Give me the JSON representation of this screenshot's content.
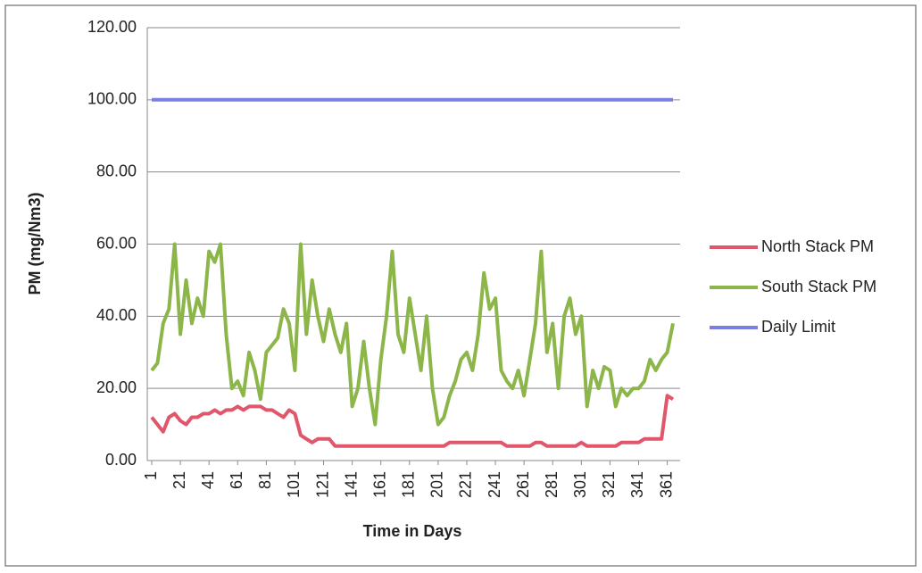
{
  "chart_data": {
    "type": "line",
    "y_label": "PM (mg/Nm3)",
    "x_label": "Time in Days",
    "x": [
      1,
      5,
      9,
      13,
      17,
      21,
      25,
      29,
      33,
      37,
      41,
      45,
      49,
      53,
      57,
      61,
      65,
      69,
      73,
      77,
      81,
      85,
      89,
      93,
      97,
      101,
      105,
      109,
      113,
      117,
      121,
      125,
      129,
      133,
      137,
      141,
      145,
      149,
      153,
      157,
      161,
      165,
      169,
      173,
      177,
      181,
      185,
      189,
      193,
      197,
      201,
      205,
      209,
      213,
      217,
      221,
      225,
      229,
      233,
      237,
      241,
      245,
      249,
      253,
      257,
      261,
      265,
      269,
      273,
      277,
      281,
      285,
      289,
      293,
      297,
      301,
      305,
      309,
      313,
      317,
      321,
      325,
      329,
      333,
      337,
      341,
      345,
      349,
      353,
      357,
      361,
      365
    ],
    "xlim": [
      1,
      365
    ],
    "xticks": [
      1,
      21,
      41,
      61,
      81,
      101,
      121,
      141,
      161,
      181,
      201,
      221,
      241,
      261,
      281,
      301,
      321,
      341,
      361
    ],
    "ylim": [
      0,
      120
    ],
    "yticks": [
      {
        "value": 0,
        "label": "0.00"
      },
      {
        "value": 20,
        "label": "20.00"
      },
      {
        "value": 40,
        "label": "40.00"
      },
      {
        "value": 60,
        "label": "60.00"
      },
      {
        "value": 80,
        "label": "80.00"
      },
      {
        "value": 100,
        "label": "100.00"
      },
      {
        "value": 120,
        "label": "120.00"
      }
    ],
    "grid": true,
    "legend": "right",
    "series": [
      {
        "name": "North Stack PM",
        "color": "#e0566b",
        "values": [
          12,
          10,
          8,
          12,
          13,
          11,
          10,
          12,
          12,
          13,
          13,
          14,
          13,
          14,
          14,
          15,
          14,
          15,
          15,
          15,
          14,
          14,
          13,
          12,
          14,
          13,
          7,
          6,
          5,
          6,
          6,
          6,
          4,
          4,
          4,
          4,
          4,
          4,
          4,
          4,
          4,
          4,
          4,
          4,
          4,
          4,
          4,
          4,
          4,
          4,
          4,
          4,
          5,
          5,
          5,
          5,
          5,
          5,
          5,
          5,
          5,
          5,
          4,
          4,
          4,
          4,
          4,
          5,
          5,
          4,
          4,
          4,
          4,
          4,
          4,
          5,
          4,
          4,
          4,
          4,
          4,
          4,
          5,
          5,
          5,
          5,
          6,
          6,
          6,
          6,
          18,
          17
        ]
      },
      {
        "name": "South Stack PM",
        "color": "#8db64a",
        "values": [
          25,
          27,
          38,
          42,
          60,
          35,
          50,
          38,
          45,
          40,
          58,
          55,
          60,
          35,
          20,
          22,
          18,
          30,
          25,
          17,
          30,
          32,
          34,
          42,
          38,
          25,
          60,
          35,
          50,
          40,
          33,
          42,
          35,
          30,
          38,
          15,
          20,
          33,
          20,
          10,
          28,
          40,
          58,
          35,
          30,
          45,
          35,
          25,
          40,
          20,
          10,
          12,
          18,
          22,
          28,
          30,
          25,
          35,
          52,
          42,
          45,
          25,
          22,
          20,
          25,
          18,
          28,
          38,
          58,
          30,
          38,
          20,
          40,
          45,
          35,
          40,
          15,
          25,
          20,
          26,
          25,
          15,
          20,
          18,
          20,
          20,
          22,
          28,
          25,
          28,
          30,
          38
        ]
      },
      {
        "name": "Daily Limit",
        "color": "#7b7fe0",
        "values": [
          100,
          100,
          100,
          100,
          100,
          100,
          100,
          100,
          100,
          100,
          100,
          100,
          100,
          100,
          100,
          100,
          100,
          100,
          100,
          100,
          100,
          100,
          100,
          100,
          100,
          100,
          100,
          100,
          100,
          100,
          100,
          100,
          100,
          100,
          100,
          100,
          100,
          100,
          100,
          100,
          100,
          100,
          100,
          100,
          100,
          100,
          100,
          100,
          100,
          100,
          100,
          100,
          100,
          100,
          100,
          100,
          100,
          100,
          100,
          100,
          100,
          100,
          100,
          100,
          100,
          100,
          100,
          100,
          100,
          100,
          100,
          100,
          100,
          100,
          100,
          100,
          100,
          100,
          100,
          100,
          100,
          100,
          100,
          100,
          100,
          100,
          100,
          100,
          100,
          100,
          100,
          100
        ]
      }
    ]
  }
}
